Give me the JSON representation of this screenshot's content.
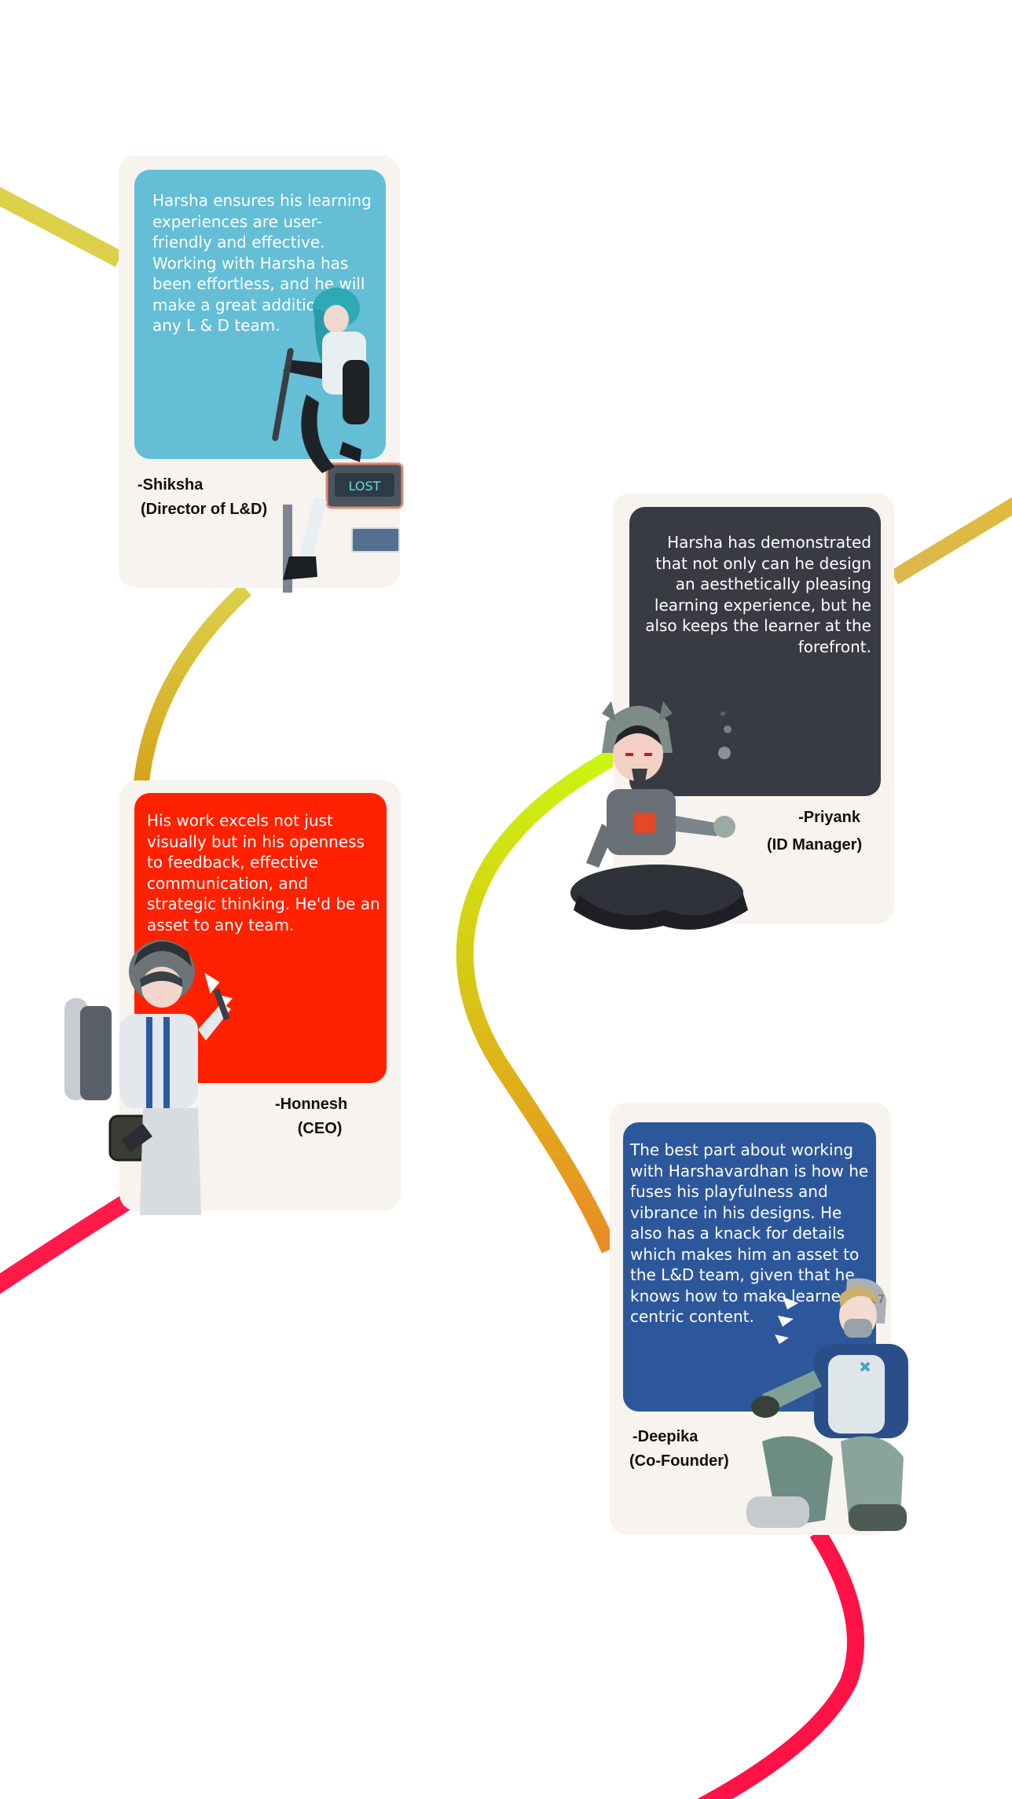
{
  "colors": {
    "card_background": "#f7f3ee",
    "ribbon_yellow": "#dcc34a",
    "ribbon_lime": "#ccf511",
    "ribbon_orange": "#e88b22",
    "ribbon_red": "#ff1246"
  },
  "testimonials": [
    {
      "quote": "Harsha ensures his learning experiences are user-friendly and effective. Working with Harsha has been effortless, and he will make a great addition to any L & D team.",
      "name": "-Shiksha",
      "role": "(Director of L&D)",
      "box_color": "#63bed6",
      "character": "girl-on-street-sign-illustration"
    },
    {
      "quote": "Harsha has demonstrated that not only can he design an aesthetically pleasing learning experience, but he also keeps the learner at the forefront.",
      "name": "-Priyank",
      "role": "(ID Manager)",
      "box_color": "#383b43",
      "character": "helmeted-sitting-character-illustration"
    },
    {
      "quote": "His work excels not just visually but in his openness to feedback, effective communication, and strategic thinking. He'd be an asset to any team.",
      "name": "-Honnesh",
      "role": "(CEO)",
      "box_color": "#ff2100",
      "character": "mechanic-with-tanks-illustration"
    },
    {
      "quote": "The best part about working with Harshavardhan is how he fuses his playfulness and vibrance in his designs. He also has a knack for details which makes him an asset to the L&D team, given that he knows how to make learner centric content.",
      "name": "-Deepika",
      "role": "(Co-Founder)",
      "box_color": "#2d579b",
      "character": "masked-crouching-character-illustration"
    }
  ]
}
